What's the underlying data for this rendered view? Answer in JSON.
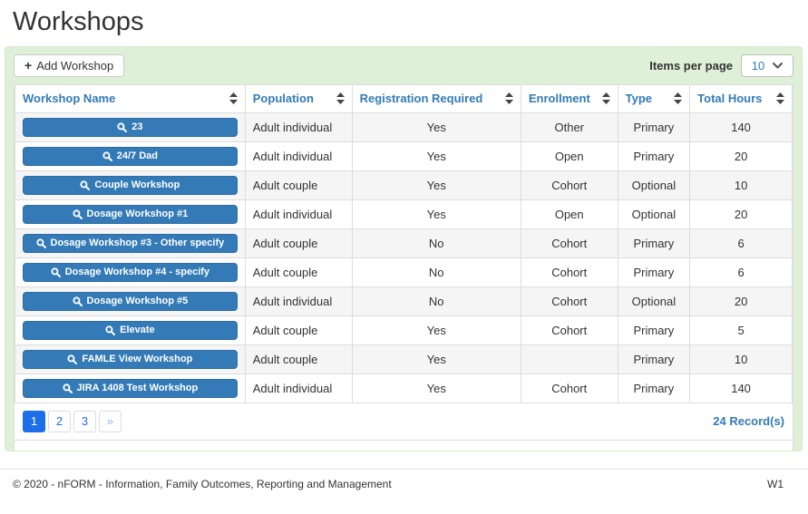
{
  "page": {
    "title": "Workshops"
  },
  "toolbar": {
    "add_workshop_label": "Add Workshop",
    "items_per_page_label": "Items per page",
    "items_per_page_value": "10"
  },
  "table": {
    "columns": [
      "Workshop Name",
      "Population",
      "Registration Required",
      "Enrollment",
      "Type",
      "Total Hours"
    ],
    "rows": [
      {
        "name": "23",
        "population": "Adult individual",
        "registration_required": "Yes",
        "enrollment": "Other",
        "type": "Primary",
        "total_hours": "140"
      },
      {
        "name": "24/7 Dad",
        "population": "Adult individual",
        "registration_required": "Yes",
        "enrollment": "Open",
        "type": "Primary",
        "total_hours": "20"
      },
      {
        "name": "Couple Workshop",
        "population": "Adult couple",
        "registration_required": "Yes",
        "enrollment": "Cohort",
        "type": "Optional",
        "total_hours": "10"
      },
      {
        "name": "Dosage Workshop #1",
        "population": "Adult individual",
        "registration_required": "Yes",
        "enrollment": "Open",
        "type": "Optional",
        "total_hours": "20"
      },
      {
        "name": "Dosage Workshop #3 - Other specify",
        "population": "Adult couple",
        "registration_required": "No",
        "enrollment": "Cohort",
        "type": "Primary",
        "total_hours": "6"
      },
      {
        "name": "Dosage Workshop #4 - specify",
        "population": "Adult couple",
        "registration_required": "No",
        "enrollment": "Cohort",
        "type": "Primary",
        "total_hours": "6"
      },
      {
        "name": "Dosage Workshop #5",
        "population": "Adult individual",
        "registration_required": "No",
        "enrollment": "Cohort",
        "type": "Optional",
        "total_hours": "20"
      },
      {
        "name": "Elevate",
        "population": "Adult couple",
        "registration_required": "Yes",
        "enrollment": "Cohort",
        "type": "Primary",
        "total_hours": "5"
      },
      {
        "name": "FAMLE View Workshop",
        "population": "Adult couple",
        "registration_required": "Yes",
        "enrollment": "",
        "type": "Primary",
        "total_hours": "10"
      },
      {
        "name": "JIRA 1408 Test Workshop",
        "population": "Adult individual",
        "registration_required": "Yes",
        "enrollment": "Cohort",
        "type": "Primary",
        "total_hours": "140"
      }
    ]
  },
  "pagination": {
    "pages": [
      "1",
      "2",
      "3"
    ],
    "active_page": "1",
    "next_label": "»",
    "record_count": "24 Record(s)"
  },
  "footer": {
    "copyright": "© 2020 - nFORM - Information, Family Outcomes, Reporting and Management",
    "page_code": "W1"
  },
  "icons": {
    "plus-icon": "+",
    "search-icon": "magnifying-glass",
    "sort-icon": "up-down-triangles",
    "chevron-down-icon": "v"
  },
  "colors": {
    "panel_bg": "#dff0d8",
    "panel_border": "#d6e9c6",
    "header_link_blue": "#337ab7",
    "workshop_button_blue": "#337ab7",
    "workshop_button_border": "#2e6da4",
    "active_page_blue": "#1c6fe8",
    "table_border": "#dddddd",
    "stripe_gray": "#f5f5f5"
  }
}
